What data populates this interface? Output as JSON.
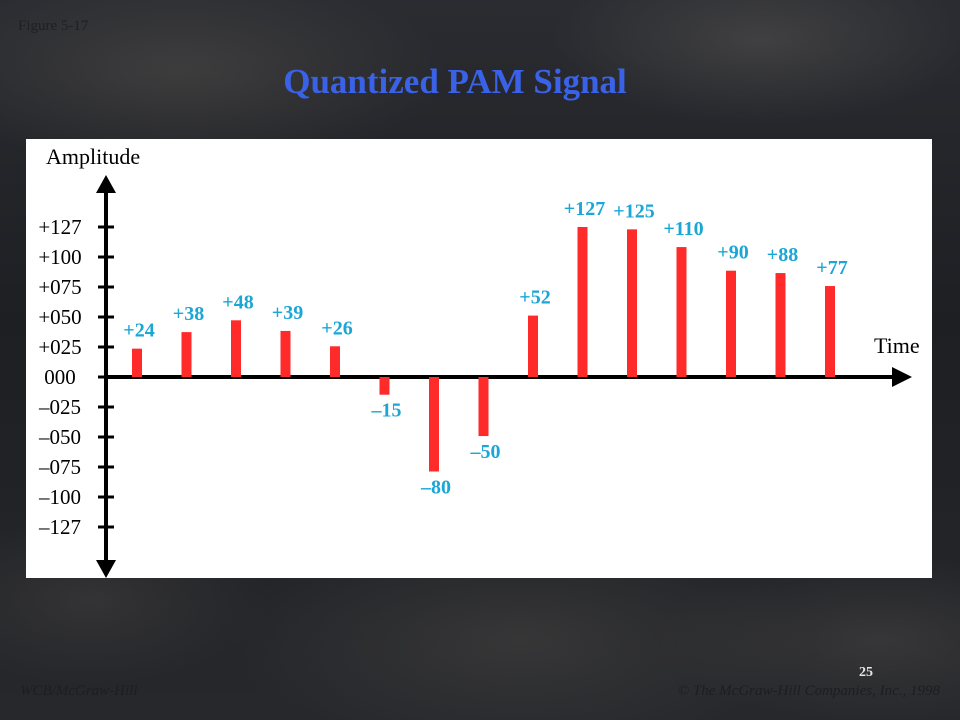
{
  "figure_label": "Figure 5-17",
  "title": "Quantized PAM Signal",
  "page_number": "25",
  "footer": {
    "publisher": "WCB/McGraw-Hill",
    "copyright": "© The McGraw-Hill Companies, Inc., 1998"
  },
  "colors": {
    "title": "#3a62e8",
    "bar": "#ff2a2a",
    "value_label": "#1aa6d6",
    "axis": "#000000",
    "text": "#000000"
  },
  "chart_data": {
    "type": "bar",
    "xlabel": "Time",
    "ylabel": "Amplitude",
    "ylim": [
      -127,
      127
    ],
    "ytick_labels": [
      "+127",
      "+100",
      "+075",
      "+050",
      "+025",
      "000",
      "–025",
      "–050",
      "–075",
      "–100",
      "–127"
    ],
    "values": [
      24,
      38,
      48,
      39,
      26,
      -15,
      -80,
      -50,
      52,
      127,
      125,
      110,
      90,
      88,
      77
    ],
    "value_labels": [
      "+24",
      "+38",
      "+48",
      "+39",
      "+26",
      "–15",
      "–80",
      "–50",
      "+52",
      "+127",
      "+125",
      "+110",
      "+90",
      "+88",
      "+77"
    ],
    "grid": false,
    "legend": "none"
  }
}
